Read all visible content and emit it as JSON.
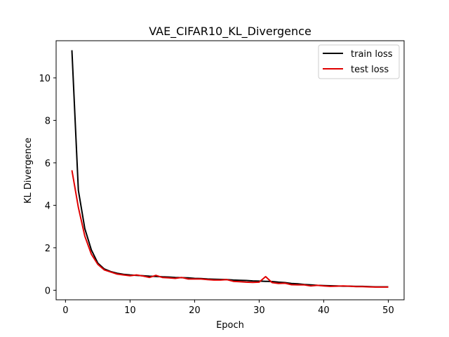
{
  "chart_data": {
    "type": "line",
    "title": "VAE_CIFAR10_KL_Divergence",
    "xlabel": "Epoch",
    "ylabel": "KL Divergence",
    "xlim": [
      -1.45,
      52.45
    ],
    "ylim": [
      -0.45,
      11.75
    ],
    "xticks": [
      0,
      10,
      20,
      30,
      40,
      50
    ],
    "yticks": [
      0,
      2,
      4,
      6,
      8,
      10
    ],
    "x": [
      1,
      2,
      3,
      4,
      5,
      6,
      7,
      8,
      9,
      10,
      11,
      12,
      13,
      14,
      15,
      16,
      17,
      18,
      19,
      20,
      21,
      22,
      23,
      24,
      25,
      26,
      27,
      28,
      29,
      30,
      31,
      32,
      33,
      34,
      35,
      36,
      37,
      38,
      39,
      40,
      41,
      42,
      43,
      44,
      45,
      46,
      47,
      48,
      49,
      50
    ],
    "series": [
      {
        "name": "train loss",
        "color": "#000000",
        "values": [
          11.3,
          4.7,
          2.9,
          1.9,
          1.28,
          1.0,
          0.88,
          0.8,
          0.75,
          0.72,
          0.7,
          0.68,
          0.66,
          0.65,
          0.63,
          0.62,
          0.6,
          0.59,
          0.58,
          0.56,
          0.55,
          0.53,
          0.52,
          0.51,
          0.5,
          0.48,
          0.47,
          0.46,
          0.44,
          0.43,
          0.42,
          0.41,
          0.38,
          0.36,
          0.32,
          0.3,
          0.27,
          0.25,
          0.23,
          0.22,
          0.21,
          0.2,
          0.19,
          0.19,
          0.18,
          0.18,
          0.17,
          0.16,
          0.16,
          0.16
        ]
      },
      {
        "name": "test loss",
        "color": "#e00000",
        "values": [
          5.65,
          3.9,
          2.55,
          1.7,
          1.22,
          0.96,
          0.86,
          0.76,
          0.72,
          0.68,
          0.72,
          0.67,
          0.6,
          0.7,
          0.6,
          0.58,
          0.56,
          0.6,
          0.53,
          0.53,
          0.53,
          0.5,
          0.48,
          0.48,
          0.5,
          0.42,
          0.4,
          0.38,
          0.37,
          0.38,
          0.64,
          0.36,
          0.32,
          0.33,
          0.26,
          0.25,
          0.25,
          0.2,
          0.23,
          0.2,
          0.18,
          0.19,
          0.2,
          0.19,
          0.17,
          0.17,
          0.16,
          0.15,
          0.15,
          0.15
        ]
      }
    ],
    "legend": {
      "placement": "upper right"
    },
    "grid": false
  }
}
